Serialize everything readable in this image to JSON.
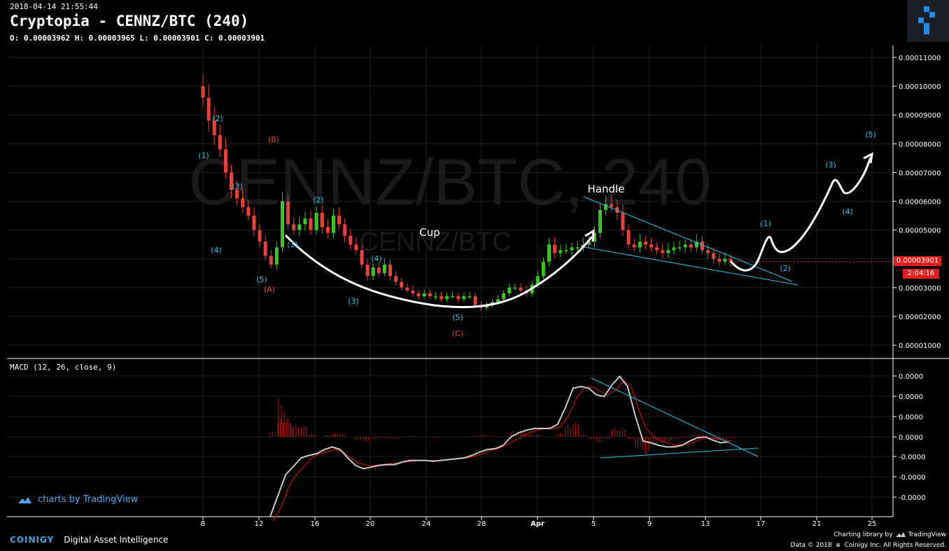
{
  "header": {
    "timestamp": "2018-04-14 21:55:44",
    "title": "Cryptopia - CENNZ/BTC (240)",
    "ohlc": "O: 0.00003962 H: 0.00003965 L: 0.00003901 C: 0.00003901"
  },
  "watermark": {
    "large": "CENNZ/BTC, 240",
    "small": "CENNZ/BTC"
  },
  "price_tag": {
    "last": "0.00003901",
    "countdown": "2:04:16"
  },
  "macd_title": "MACD (12, 26, close, 9)",
  "credits": {
    "tradingview": "charts by TradingView",
    "brand": "COINIGY",
    "tagline": "Digital Asset Intelligence",
    "charting_library": "Charting library by",
    "tv_name": "TradingView",
    "data_left": "Data © 2018",
    "data_right": "Coinigy Inc. All Rights Reserved."
  },
  "colors": {
    "up": "#39c620",
    "down": "#e8413b",
    "axis": "#ffffff",
    "cyan": "#25c5e2",
    "red_label": "#e8413b",
    "macd_line": "#c8c8c8",
    "signal_line": "#c01010"
  },
  "chart_data": {
    "type": "candlestick",
    "x_tick_labels": [
      "8",
      "12",
      "16",
      "20",
      "24",
      "28",
      "Apr",
      "5",
      "9",
      "13",
      "17",
      "21",
      "25"
    ],
    "price_axis_labels": [
      "0.00011000",
      "0.00010000",
      "0.00009000",
      "0.00008000",
      "0.00007000",
      "0.00006000",
      "0.00005000",
      "0.00004000",
      "0.00003000",
      "0.00002000",
      "0.00001000"
    ],
    "price_ylim": [
      4e-06,
      0.000114
    ],
    "macd_axis_labels": [
      "0.0000",
      "0.0000",
      "0.0000",
      "0.0000",
      "-0.0000",
      "-0.0000",
      "-0.0000"
    ],
    "closes": [
      9.6e-05,
      8.8e-05,
      8.3e-05,
      7.8e-05,
      7e-05,
      6.4e-05,
      6.1e-05,
      5.8e-05,
      5.5e-05,
      5e-05,
      4.6e-05,
      4.1e-05,
      3.8e-05,
      4.4e-05,
      6e-05,
      5.2e-05,
      5e-05,
      5.2e-05,
      5.4e-05,
      5e-05,
      5.6e-05,
      5.1e-05,
      4.9e-05,
      5.5e-05,
      5.2e-05,
      4.8e-05,
      4.5e-05,
      4.3e-05,
      3.8e-05,
      3.4e-05,
      3.7e-05,
      3.5e-05,
      3.8e-05,
      3.4e-05,
      3.2e-05,
      3e-05,
      2.9e-05,
      2.8e-05,
      2.7e-05,
      2.8e-05,
      2.7e-05,
      2.7e-05,
      2.6e-05,
      2.7e-05,
      2.7e-05,
      2.6e-05,
      2.7e-05,
      2.7e-05,
      2.4e-05,
      2.3e-05,
      2.4e-05,
      2.5e-05,
      2.6e-05,
      2.8e-05,
      3e-05,
      3e-05,
      2.9e-05,
      2.8e-05,
      3.1e-05,
      3.4e-05,
      3.9e-05,
      4.5e-05,
      4.2e-05,
      4.3e-05,
      4.3e-05,
      4.4e-05,
      4.4e-05,
      4.5e-05,
      4.6e-05,
      4.9e-05,
      5.7e-05,
      5.9e-05,
      5.8e-05,
      5.6e-05,
      5e-05,
      4.5e-05,
      4.4e-05,
      4.6e-05,
      4.5e-05,
      4.4e-05,
      4.3e-05,
      4.2e-05,
      4.3e-05,
      4.4e-05,
      4.4e-05,
      4.5e-05,
      4.4e-05,
      4.6e-05,
      4.3e-05,
      4.2e-05,
      4e-05,
      3.9e-05,
      4e-05,
      3.9e-05
    ],
    "macd_line": [
      -0.95,
      -0.7,
      -0.45,
      -0.35,
      -0.25,
      -0.22,
      -0.2,
      -0.15,
      -0.12,
      -0.15,
      -0.25,
      -0.34,
      -0.38,
      -0.36,
      -0.34,
      -0.33,
      -0.33,
      -0.3,
      -0.28,
      -0.28,
      -0.28,
      -0.29,
      -0.28,
      -0.27,
      -0.26,
      -0.25,
      -0.22,
      -0.18,
      -0.15,
      -0.14,
      -0.1,
      0.0,
      0.05,
      0.08,
      0.1,
      0.1,
      0.1,
      0.15,
      0.35,
      0.58,
      0.6,
      0.58,
      0.5,
      0.48,
      0.62,
      0.72,
      0.6,
      0.25,
      -0.05,
      -0.07,
      -0.1,
      -0.12,
      -0.12,
      -0.1,
      -0.05,
      -0.01,
      0.0,
      -0.04,
      -0.07,
      -0.06
    ],
    "signal_line": [
      -1.0,
      -0.85,
      -0.6,
      -0.45,
      -0.35,
      -0.25,
      -0.2,
      -0.17,
      -0.15,
      -0.18,
      -0.25,
      -0.31,
      -0.34,
      -0.34,
      -0.33,
      -0.32,
      -0.31,
      -0.3,
      -0.29,
      -0.28,
      -0.28,
      -0.28,
      -0.28,
      -0.27,
      -0.26,
      -0.25,
      -0.23,
      -0.2,
      -0.16,
      -0.14,
      -0.1,
      -0.05,
      0.0,
      0.05,
      0.08,
      0.1,
      0.1,
      0.12,
      0.25,
      0.45,
      0.58,
      0.6,
      0.55,
      0.5,
      0.55,
      0.65,
      0.62,
      0.35,
      0.1,
      0.0,
      -0.05,
      -0.08,
      -0.1,
      -0.09,
      -0.07,
      -0.03,
      -0.01,
      -0.02,
      -0.04,
      -0.05
    ],
    "annotations": {
      "cup": "Cup",
      "handle": "Handle",
      "waves_cyan": [
        "(1)",
        "(2)",
        "(3)",
        "(4)",
        "(5)",
        "(1)",
        "(2)",
        "(3)",
        "(4)",
        "(5)",
        "(3)",
        "(4)",
        "(5)",
        "(1)",
        "(2)",
        "(3)",
        "(4)",
        "(5)"
      ],
      "waves_red": [
        "(A)",
        "(B)",
        "(C)"
      ]
    }
  }
}
